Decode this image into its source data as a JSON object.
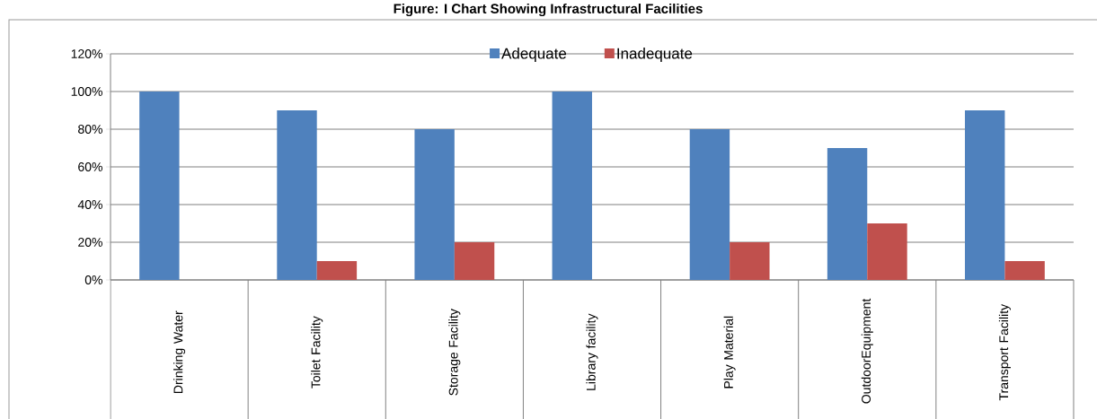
{
  "chart_data": {
    "type": "bar",
    "title": "Figure: I Chart Showing Infrastructural Facilities",
    "categories": [
      "Drinking Water",
      "Toilet Facility",
      "Storage Facility",
      "Library facility",
      "Play Material",
      "OutdoorEquipment",
      "Transport Facility"
    ],
    "series": [
      {
        "name": "Adequate",
        "color": "#4f81bd",
        "values": [
          100,
          90,
          80,
          100,
          80,
          70,
          90
        ]
      },
      {
        "name": "Inadequate",
        "color": "#c0504d",
        "values": [
          0,
          10,
          20,
          0,
          20,
          30,
          10
        ]
      }
    ],
    "ylim": [
      0,
      120
    ],
    "yticks": [
      {
        "value": 0,
        "label": "0%"
      },
      {
        "value": 20,
        "label": "20%"
      },
      {
        "value": 40,
        "label": "40%"
      },
      {
        "value": 60,
        "label": "60%"
      },
      {
        "value": 80,
        "label": "80%"
      },
      {
        "value": 100,
        "label": "100%"
      },
      {
        "value": 120,
        "label": "120%"
      }
    ],
    "grid": "y",
    "legend": "top"
  }
}
